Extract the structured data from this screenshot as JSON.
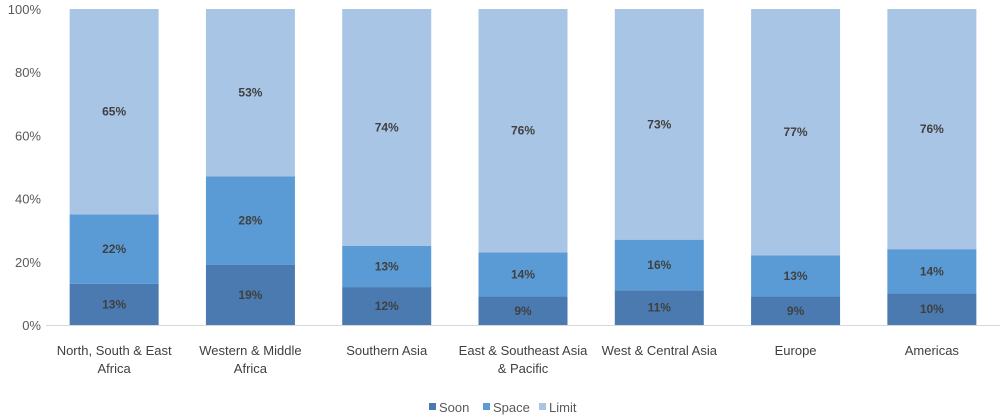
{
  "chart_data": {
    "type": "bar",
    "stacked": true,
    "normalized": true,
    "categories": [
      [
        "North, South & East",
        "Africa"
      ],
      [
        "Western & Middle",
        "Africa"
      ],
      [
        "Southern Asia"
      ],
      [
        "East & Southeast Asia",
        "& Pacific"
      ],
      [
        "West & Central Asia"
      ],
      [
        "Europe"
      ],
      [
        "Americas"
      ]
    ],
    "series": [
      {
        "name": "Soon",
        "color": "#4a7ab0",
        "values": [
          13,
          19,
          12,
          9,
          11,
          9,
          10
        ]
      },
      {
        "name": "Space",
        "color": "#5b9bd5",
        "values": [
          22,
          28,
          13,
          14,
          16,
          13,
          14
        ]
      },
      {
        "name": "Limit",
        "color": "#a9c5e6",
        "values": [
          65,
          53,
          74,
          76,
          73,
          77,
          76
        ]
      }
    ],
    "ylim": [
      0,
      100
    ],
    "yticks": [
      "0%",
      "20%",
      "40%",
      "60%",
      "80%",
      "100%"
    ],
    "legend": "bottom",
    "grid": false
  }
}
